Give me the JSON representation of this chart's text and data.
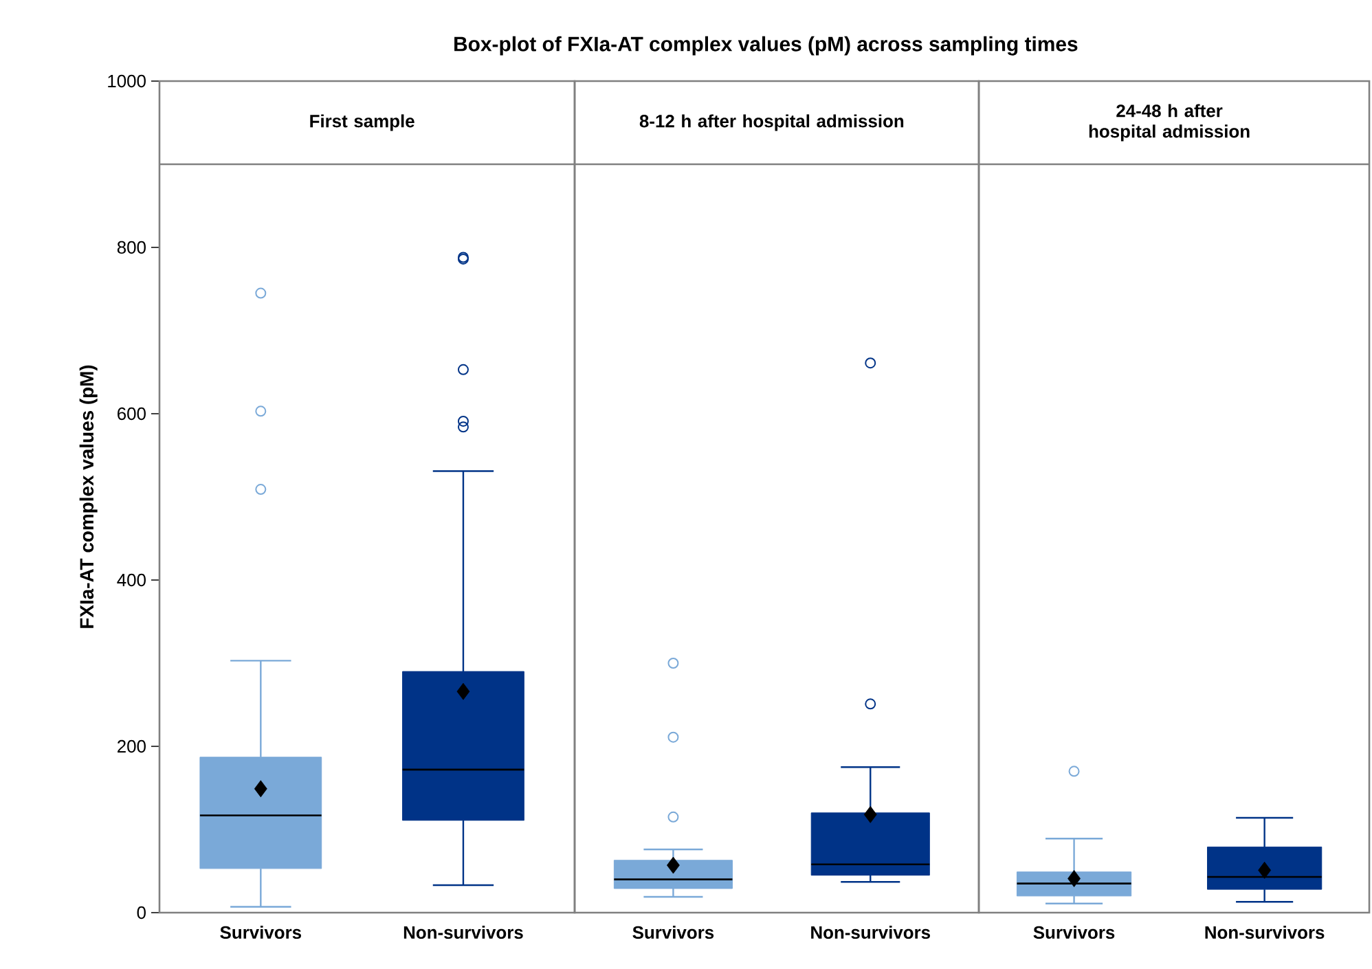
{
  "chart_data": [
    {
      "type": "box",
      "title": "Box-plot of FXIa-AT complex values (pM) across sampling times",
      "subtitle": "First sample",
      "ylabel": "FXIa-AT complex values (pM)",
      "categories": [
        "Survivors",
        "Non-survivors"
      ],
      "colors": [
        "#7aa9d8",
        "#003387"
      ],
      "ylim": [
        0,
        1000
      ],
      "yticks": [
        0,
        200,
        400,
        600,
        800,
        1000
      ],
      "boxes": [
        {
          "low": 7,
          "q1": 53,
          "median": 117,
          "q3": 187,
          "high": 303,
          "mean": 149,
          "outliers": [
            509,
            603,
            745
          ]
        },
        {
          "low": 33,
          "q1": 111,
          "median": 172,
          "q3": 290,
          "high": 531,
          "mean": 266,
          "outliers": [
            584,
            591,
            653,
            786,
            788
          ]
        }
      ],
      "ref_lines": [
        {
          "axis": "y",
          "value": 900,
          "color": "#808080"
        }
      ]
    },
    {
      "type": "box",
      "subtitle": "8-12 h after hospital admission",
      "categories": [
        "Survivors",
        "Non-survivors"
      ],
      "colors": [
        "#7aa9d8",
        "#003387"
      ],
      "ylim": [
        0,
        1000
      ],
      "tick_labels": "x",
      "boxes": [
        {
          "low": 19,
          "q1": 29,
          "median": 40,
          "q3": 63,
          "high": 76,
          "mean": 57,
          "outliers": [
            115,
            211,
            300
          ]
        },
        {
          "low": 37,
          "q1": 45,
          "median": 58,
          "q3": 120,
          "high": 175,
          "mean": 118,
          "outliers": [
            251,
            661
          ]
        }
      ],
      "ref_lines": [
        {
          "axis": "y",
          "value": 900,
          "color": "#808080"
        }
      ]
    },
    {
      "type": "box",
      "subtitle": "24-48 h after hospital admission",
      "categories": [
        "Survivors",
        "Non-survivors"
      ],
      "colors": [
        "#7aa9d8",
        "#003387"
      ],
      "ylim": [
        0,
        1000
      ],
      "tick_labels": "x",
      "boxes": [
        {
          "low": 11,
          "q1": 20,
          "median": 35,
          "q3": 49,
          "high": 89,
          "mean": 41,
          "outliers": [
            170
          ]
        },
        {
          "low": 13,
          "q1": 28,
          "median": 43,
          "q3": 79,
          "high": 114,
          "mean": 51
        }
      ],
      "ref_lines": [
        {
          "axis": "y",
          "value": 900,
          "color": "#808080"
        }
      ]
    }
  ]
}
